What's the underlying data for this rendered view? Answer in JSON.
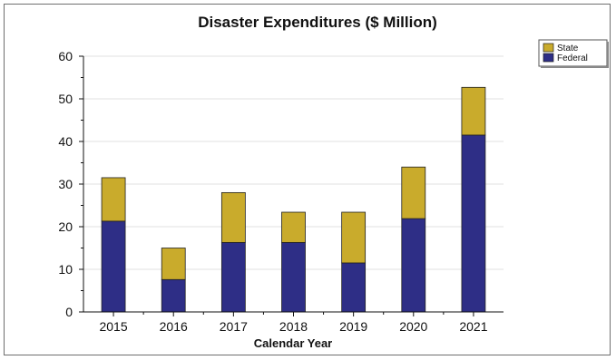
{
  "chart_data": {
    "type": "bar",
    "stacked": true,
    "title": "Disaster Expenditures ($ Million)",
    "xlabel": "Calendar Year",
    "ylabel": "",
    "ylim": [
      0,
      60
    ],
    "yticks": [
      0,
      10,
      20,
      30,
      40,
      50,
      60
    ],
    "grid": true,
    "legend_position": "top-right",
    "categories": [
      "2015",
      "2016",
      "2017",
      "2018",
      "2019",
      "2020",
      "2021"
    ],
    "series": [
      {
        "name": "Federal",
        "color": "#2e2e86",
        "values": [
          21.3,
          7.6,
          16.3,
          16.3,
          11.5,
          21.9,
          41.5
        ]
      },
      {
        "name": "State",
        "color": "#c9ab2c",
        "values": [
          10.2,
          7.4,
          11.7,
          7.1,
          11.9,
          12.1,
          11.2
        ]
      }
    ],
    "legend_order": [
      "State",
      "Federal"
    ]
  }
}
